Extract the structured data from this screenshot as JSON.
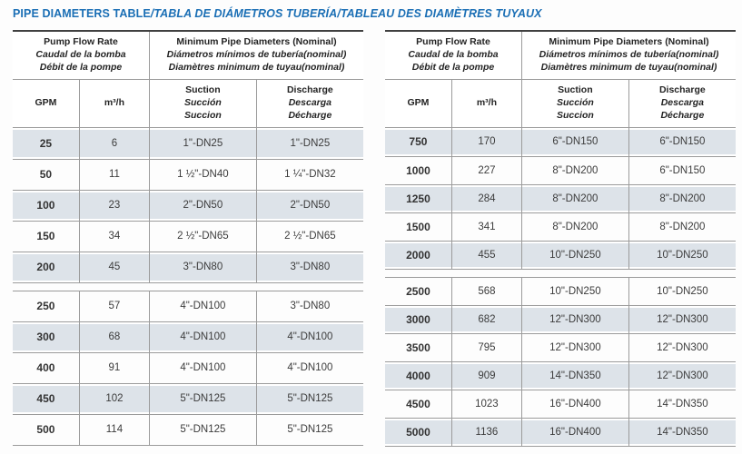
{
  "title": {
    "en": "PIPE DIAMETERS TABLE",
    "translations": "/TABLA DE DIÁMETROS TUBERÍA/TABLEAU DES DIAMÈTRES TUYAUX"
  },
  "accent_color": "#1b6fb5",
  "shaded_row_color": "#dde3e9",
  "column_headers": {
    "flow_group": [
      "Pump Flow Rate",
      "Caudal de la bomba",
      "Débit de la pompe"
    ],
    "diameters_group": [
      "Minimum Pipe Diameters (Nominal)",
      "Diámetros mínimos de tubería(nominal)",
      "Diamètres minimum de tuyau(nominal)"
    ],
    "gpm": "GPM",
    "m3h": "m³/h",
    "suction": [
      "Suction",
      "Succión",
      "Succion"
    ],
    "discharge": [
      "Discharge",
      "Descarga",
      "Décharge"
    ]
  },
  "left_table": {
    "sections": [
      {
        "rows": [
          [
            "25",
            "6",
            "1\"-DN25",
            "1\"-DN25"
          ],
          [
            "50",
            "11",
            "1 ½\"-DN40",
            "1 ¼\"-DN32"
          ],
          [
            "100",
            "23",
            "2\"-DN50",
            "2\"-DN50"
          ],
          [
            "150",
            "34",
            "2 ½\"-DN65",
            "2 ½\"-DN65"
          ],
          [
            "200",
            "45",
            "3\"-DN80",
            "3\"-DN80"
          ]
        ]
      },
      {
        "rows": [
          [
            "250",
            "57",
            "4\"-DN100",
            "3\"-DN80"
          ],
          [
            "300",
            "68",
            "4\"-DN100",
            "4\"-DN100"
          ],
          [
            "400",
            "91",
            "4\"-DN100",
            "4\"-DN100"
          ],
          [
            "450",
            "102",
            "5\"-DN125",
            "5\"-DN125"
          ],
          [
            "500",
            "114",
            "5\"-DN125",
            "5\"-DN125"
          ]
        ]
      }
    ]
  },
  "right_table": {
    "sections": [
      {
        "rows": [
          [
            "750",
            "170",
            "6\"-DN150",
            "6\"-DN150"
          ],
          [
            "1000",
            "227",
            "8\"-DN200",
            "6\"-DN150"
          ],
          [
            "1250",
            "284",
            "8\"-DN200",
            "8\"-DN200"
          ],
          [
            "1500",
            "341",
            "8\"-DN200",
            "8\"-DN200"
          ],
          [
            "2000",
            "455",
            "10\"-DN250",
            "10\"-DN250"
          ]
        ]
      },
      {
        "rows": [
          [
            "2500",
            "568",
            "10\"-DN250",
            "10\"-DN250"
          ],
          [
            "3000",
            "682",
            "12\"-DN300",
            "12\"-DN300"
          ],
          [
            "3500",
            "795",
            "12\"-DN300",
            "12\"-DN300"
          ],
          [
            "4000",
            "909",
            "14\"-DN350",
            "12\"-DN300"
          ],
          [
            "4500",
            "1023",
            "16\"-DN400",
            "14\"-DN350"
          ],
          [
            "5000",
            "1136",
            "16\"-DN400",
            "14\"-DN350"
          ]
        ]
      }
    ]
  }
}
